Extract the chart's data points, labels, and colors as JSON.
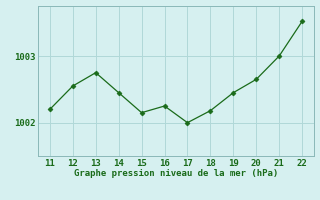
{
  "x": [
    11,
    12,
    13,
    14,
    15,
    16,
    17,
    18,
    19,
    20,
    21,
    22
  ],
  "y": [
    1002.2,
    1002.55,
    1002.75,
    1002.45,
    1002.15,
    1002.25,
    1002.0,
    1002.18,
    1002.45,
    1002.65,
    1003.0,
    1003.52
  ],
  "line_color": "#1a6b1a",
  "marker": "D",
  "marker_size": 2.5,
  "background_color": "#d6f0f0",
  "grid_color": "#b0d8d8",
  "border_color": "#8ab8b8",
  "xlabel": "Graphe pression niveau de la mer (hPa)",
  "xlabel_color": "#1a6b1a",
  "tick_color": "#1a6b1a",
  "xlim": [
    10.5,
    22.5
  ],
  "ylim": [
    1001.5,
    1003.75
  ],
  "yticks": [
    1002,
    1003
  ],
  "xticks": [
    11,
    12,
    13,
    14,
    15,
    16,
    17,
    18,
    19,
    20,
    21,
    22
  ]
}
